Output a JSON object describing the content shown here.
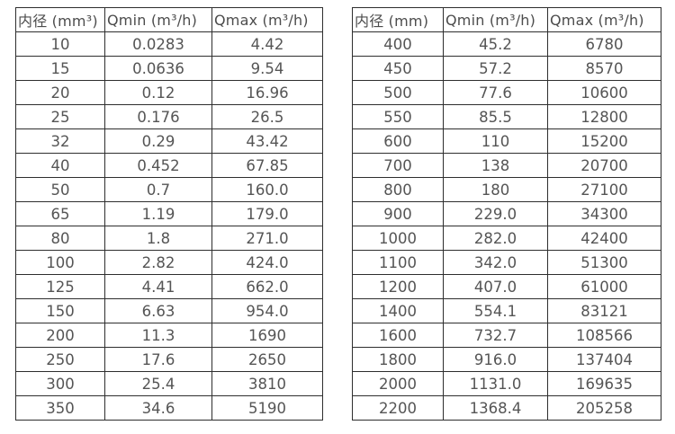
{
  "page": {
    "background_color": "#ffffff",
    "table_border_color": "#2e2e2e",
    "header_text_color": "#4c4c4c",
    "cell_text_color": "#555555"
  },
  "tables": [
    {
      "id": "small-diameter-flow-table",
      "headers": [
        "内径 (mm³)",
        "Qmin (m³/h)",
        "Qmax (m³/h)"
      ],
      "rows": [
        [
          "10",
          "0.0283",
          "4.42"
        ],
        [
          "15",
          "0.0636",
          "9.54"
        ],
        [
          "20",
          "0.12",
          "16.96"
        ],
        [
          "25",
          "0.176",
          "26.5"
        ],
        [
          "32",
          "0.29",
          "43.42"
        ],
        [
          "40",
          "0.452",
          "67.85"
        ],
        [
          "50",
          "0.7",
          "160.0"
        ],
        [
          "65",
          "1.19",
          "179.0"
        ],
        [
          "80",
          "1.8",
          "271.0"
        ],
        [
          "100",
          "2.82",
          "424.0"
        ],
        [
          "125",
          "4.41",
          "662.0"
        ],
        [
          "150",
          "6.63",
          "954.0"
        ],
        [
          "200",
          "11.3",
          "1690"
        ],
        [
          "250",
          "17.6",
          "2650"
        ],
        [
          "300",
          "25.4",
          "3810"
        ],
        [
          "350",
          "34.6",
          "5190"
        ]
      ]
    },
    {
      "id": "large-diameter-flow-table",
      "headers": [
        "内径 (mm)",
        "Qmin (m³/h)",
        "Qmax (m³/h)"
      ],
      "rows": [
        [
          "400",
          "45.2",
          "6780"
        ],
        [
          "450",
          "57.2",
          "8570"
        ],
        [
          "500",
          "77.6",
          "10600"
        ],
        [
          "550",
          "85.5",
          "12800"
        ],
        [
          "600",
          "110",
          "15200"
        ],
        [
          "700",
          "138",
          "20700"
        ],
        [
          "800",
          "180",
          "27100"
        ],
        [
          "900",
          "229.0",
          "34300"
        ],
        [
          "1000",
          "282.0",
          "42400"
        ],
        [
          "1100",
          "342.0",
          "51300"
        ],
        [
          "1200",
          "407.0",
          "61000"
        ],
        [
          "1400",
          "554.1",
          "83121"
        ],
        [
          "1600",
          "732.7",
          "108566"
        ],
        [
          "1800",
          "916.0",
          "137404"
        ],
        [
          "2000",
          "1131.0",
          "169635"
        ],
        [
          "2200",
          "1368.4",
          "205258"
        ]
      ]
    }
  ]
}
